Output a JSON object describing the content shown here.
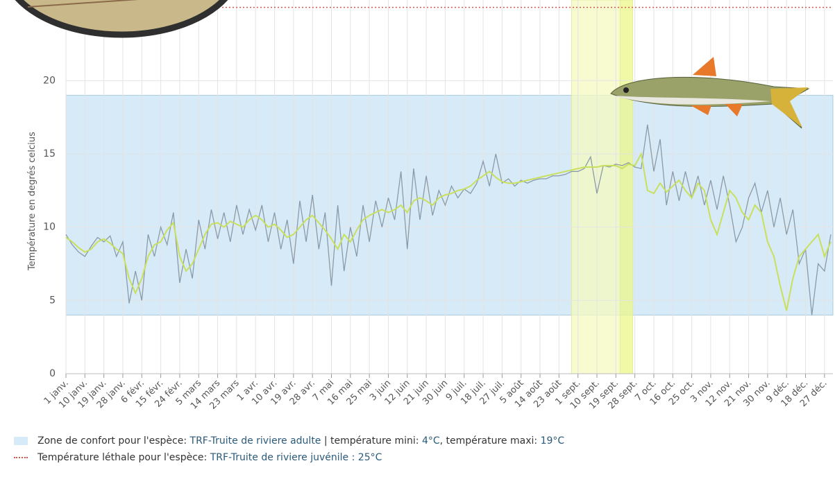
{
  "chart_data": {
    "type": "line",
    "y_label": "Température en degrés celcius",
    "x": [
      0,
      3,
      6,
      9,
      12,
      15,
      18,
      21,
      24,
      27,
      30,
      33,
      36,
      39,
      42,
      45,
      48,
      51,
      54,
      57,
      60,
      63,
      66,
      69,
      72,
      75,
      78,
      81,
      84,
      87,
      90,
      93,
      96,
      99,
      102,
      105,
      108,
      111,
      114,
      117,
      120,
      123,
      126,
      129,
      132,
      135,
      138,
      141,
      144,
      147,
      150,
      153,
      156,
      159,
      162,
      165,
      168,
      171,
      174,
      177,
      180,
      183,
      186,
      189,
      192,
      195,
      198,
      201,
      204,
      207,
      210,
      213,
      216,
      219,
      222,
      225,
      228,
      231,
      234,
      237,
      240,
      243,
      246,
      249,
      252,
      255,
      258,
      261,
      264,
      267,
      270,
      273,
      276,
      279,
      282,
      285,
      288,
      291,
      294,
      297,
      300,
      303,
      306,
      309,
      312,
      315,
      318,
      321,
      324,
      327,
      330,
      333,
      336,
      339,
      342,
      345,
      348,
      351,
      354,
      357,
      360,
      363
    ],
    "series": [
      {
        "color": "#8b9aa7",
        "values": [
          9.5,
          8.8,
          8.3,
          8.0,
          8.7,
          9.3,
          9.0,
          9.4,
          8.0,
          9.0,
          4.8,
          7.0,
          5.0,
          9.5,
          8.0,
          10.0,
          8.8,
          11.0,
          6.2,
          8.5,
          6.5,
          10.5,
          8.5,
          11.2,
          9.2,
          11.0,
          9.0,
          11.5,
          9.5,
          11.2,
          9.8,
          11.5,
          9.0,
          11.0,
          8.5,
          10.5,
          7.5,
          11.8,
          9.0,
          12.2,
          8.5,
          11.0,
          6.0,
          11.5,
          7.0,
          10.0,
          8.0,
          11.5,
          9.0,
          11.8,
          10.0,
          12.0,
          10.5,
          13.8,
          8.5,
          14.0,
          10.5,
          13.5,
          10.8,
          12.5,
          11.5,
          12.8,
          12.0,
          12.6,
          12.3,
          13.0,
          14.5,
          12.8,
          15.0,
          13.0,
          13.3,
          12.8,
          13.2,
          13.0,
          13.2,
          13.3,
          13.3,
          13.5,
          13.5,
          13.6,
          13.8,
          13.8,
          14.0,
          14.8,
          12.3,
          14.2,
          14.1,
          14.3,
          14.2,
          14.4,
          14.1,
          14.0,
          17.0,
          13.8,
          16.0,
          11.5,
          13.8,
          11.8,
          13.8,
          12.0,
          13.5,
          11.5,
          13.2,
          11.2,
          13.5,
          11.5,
          9.0,
          10.0,
          12.0,
          13.0,
          11.0,
          12.5,
          10.0,
          12.0,
          9.5,
          11.2,
          7.5,
          8.5,
          4.0,
          7.5,
          7.0,
          9.5
        ]
      },
      {
        "color": "#c9e05c",
        "values": [
          9.3,
          9.0,
          8.6,
          8.3,
          8.5,
          9.0,
          9.2,
          8.9,
          8.5,
          8.2,
          6.5,
          5.5,
          6.5,
          8.0,
          8.8,
          9.0,
          9.8,
          10.3,
          8.0,
          7.0,
          7.5,
          8.5,
          9.5,
          10.2,
          10.3,
          10.0,
          10.4,
          10.2,
          10.0,
          10.5,
          10.8,
          10.5,
          10.0,
          10.2,
          9.8,
          9.3,
          9.5,
          10.0,
          10.5,
          10.8,
          10.3,
          9.8,
          9.2,
          8.5,
          9.5,
          9.0,
          9.8,
          10.5,
          10.8,
          11.0,
          11.2,
          11.0,
          11.2,
          11.5,
          11.0,
          11.8,
          12.0,
          11.8,
          11.5,
          12.0,
          12.2,
          12.3,
          12.5,
          12.6,
          12.8,
          13.2,
          13.5,
          13.8,
          13.4,
          13.1,
          13.0,
          13.0,
          13.1,
          13.2,
          13.3,
          13.4,
          13.5,
          13.6,
          13.7,
          13.8,
          13.9,
          14.0,
          14.1,
          14.1,
          14.1,
          14.2,
          14.2,
          14.2,
          14.0,
          14.3,
          14.2,
          15.0,
          12.5,
          12.3,
          13.0,
          12.4,
          12.8,
          13.2,
          12.5,
          12.0,
          13.0,
          12.5,
          10.5,
          9.5,
          11.0,
          12.5,
          12.0,
          11.0,
          10.5,
          11.5,
          11.0,
          9.0,
          8.0,
          6.0,
          4.3,
          6.5,
          8.0,
          8.5,
          9.0,
          9.5,
          8.0,
          9.0
        ]
      }
    ],
    "xlim": [
      0,
      364
    ],
    "xticks": [
      {
        "value": 0,
        "label": "1 janv."
      },
      {
        "value": 9,
        "label": "10 janv."
      },
      {
        "value": 18,
        "label": "19 janv."
      },
      {
        "value": 27,
        "label": "28 janv."
      },
      {
        "value": 36,
        "label": "6 févr."
      },
      {
        "value": 45,
        "label": "15 févr."
      },
      {
        "value": 54,
        "label": "24 févr."
      },
      {
        "value": 63,
        "label": "5 mars"
      },
      {
        "value": 72,
        "label": "14 mars"
      },
      {
        "value": 81,
        "label": "23 mars"
      },
      {
        "value": 90,
        "label": "1 avr."
      },
      {
        "value": 99,
        "label": "10 avr."
      },
      {
        "value": 108,
        "label": "19 avr."
      },
      {
        "value": 117,
        "label": "28 avr."
      },
      {
        "value": 126,
        "label": "7 mai"
      },
      {
        "value": 135,
        "label": "16 mai"
      },
      {
        "value": 144,
        "label": "25 mai"
      },
      {
        "value": 153,
        "label": "3 juin"
      },
      {
        "value": 162,
        "label": "12 juin"
      },
      {
        "value": 171,
        "label": "21 juin"
      },
      {
        "value": 180,
        "label": "30 juin"
      },
      {
        "value": 189,
        "label": "9 juil."
      },
      {
        "value": 198,
        "label": "18 juil."
      },
      {
        "value": 207,
        "label": "27 juil."
      },
      {
        "value": 216,
        "label": "5 août"
      },
      {
        "value": 225,
        "label": "14 août"
      },
      {
        "value": 234,
        "label": "23 août"
      },
      {
        "value": 243,
        "label": "1 sept."
      },
      {
        "value": 252,
        "label": "10 sept."
      },
      {
        "value": 261,
        "label": "19 sept."
      },
      {
        "value": 270,
        "label": "28 sept."
      },
      {
        "value": 279,
        "label": "7 oct."
      },
      {
        "value": 288,
        "label": "16 oct."
      },
      {
        "value": 297,
        "label": "25 oct."
      },
      {
        "value": 306,
        "label": "3 nov."
      },
      {
        "value": 315,
        "label": "12 nov."
      },
      {
        "value": 324,
        "label": "21 nov."
      },
      {
        "value": 333,
        "label": "30 nov."
      },
      {
        "value": 342,
        "label": "9 déc."
      },
      {
        "value": 351,
        "label": "18 déc."
      },
      {
        "value": 360,
        "label": "27 déc."
      }
    ],
    "ylim": [
      0,
      25.5
    ],
    "yticks": [
      0,
      5,
      10,
      15,
      20
    ],
    "grid": true,
    "comfort_zone": [
      4,
      19
    ],
    "comfort_color": "#d6eaf8",
    "lethal": 25,
    "lethal_color": "#d9534f",
    "x_bands": [
      {
        "range": [
          240,
          263
        ],
        "color": "#f6f9c0"
      },
      {
        "range": [
          263,
          269
        ],
        "color": "#ecf78a"
      }
    ],
    "legend": [
      {
        "label": "Zone de confort pour l'espèce: ",
        "species": "TRF-Truite de riviere adulte",
        "sep": " | température mini: ",
        "min": "4°C",
        "sep2": ", température maxi: ",
        "max": "19°C"
      },
      {
        "label": "Température léthale pour l'espèce: ",
        "species": "TRF-Truite de riviere juvénile : 25°C"
      }
    ]
  }
}
